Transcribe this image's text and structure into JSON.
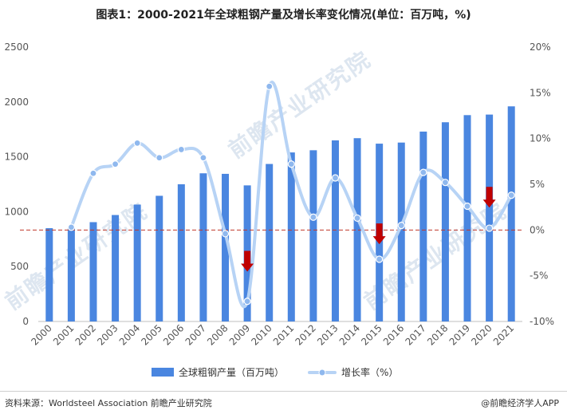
{
  "title": "图表1：2000-2021年全球粗钢产量及增长率变化情况(单位：百万吨，%)",
  "source": "资料来源：Worldsteel Association 前瞻产业研究院",
  "brand": "@前瞻经济学人APP",
  "watermark": "前瞻产业研究院",
  "chart_data": {
    "type": "bar",
    "categories": [
      "2000",
      "2001",
      "2002",
      "2003",
      "2004",
      "2005",
      "2006",
      "2007",
      "2008",
      "2009",
      "2010",
      "2011",
      "2012",
      "2013",
      "2014",
      "2015",
      "2016",
      "2017",
      "2018",
      "2019",
      "2020",
      "2021"
    ],
    "series": [
      {
        "name": "全球粗钢产量（百万吨）",
        "type": "bar",
        "axis": "left",
        "color": "#4a86e0",
        "values": [
          850,
          850,
          905,
          970,
          1065,
          1145,
          1250,
          1350,
          1345,
          1240,
          1435,
          1540,
          1560,
          1650,
          1670,
          1620,
          1630,
          1730,
          1815,
          1880,
          1885,
          1960
        ]
      },
      {
        "name": "增长率（%）",
        "type": "line",
        "axis": "right",
        "color": "#b7d3f5",
        "values": [
          null,
          0.3,
          6.2,
          7.2,
          9.5,
          7.9,
          8.8,
          7.9,
          -0.4,
          -7.8,
          15.7,
          7.2,
          1.4,
          5.7,
          1.3,
          -3.2,
          0.5,
          6.3,
          5.2,
          2.6,
          0.2,
          3.8
        ]
      }
    ],
    "ylim_left": [
      0,
      2500
    ],
    "yticks_left": [
      "0",
      "500",
      "1000",
      "1500",
      "2000",
      "2500"
    ],
    "ylim_right": [
      -10,
      20
    ],
    "yticks_right": [
      "-10%",
      "-5%",
      "0%",
      "5%",
      "10%",
      "15%",
      "20%"
    ],
    "reference_line": {
      "axis": "right",
      "value": 0,
      "color": "#c0392b",
      "style": "dashed"
    },
    "down_arrows": [
      {
        "category": "2009",
        "value": -3.5
      },
      {
        "category": "2015",
        "value": -0.5
      },
      {
        "category": "2020",
        "value": 3.5
      }
    ],
    "arrow_color": "#c00000",
    "legend_position": "bottom",
    "grid": false
  }
}
